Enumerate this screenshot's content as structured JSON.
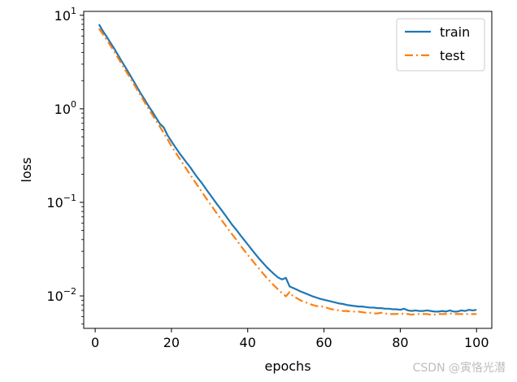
{
  "chart_data": {
    "type": "line",
    "xlabel": "epochs",
    "ylabel": "loss",
    "yscale": "log",
    "xlim": [
      -3,
      104
    ],
    "ylim": [
      0.0045,
      11
    ],
    "xticks": [
      0,
      20,
      40,
      60,
      80,
      100
    ],
    "yticks": [
      {
        "value": 0.01,
        "base": "10",
        "exp": "−2"
      },
      {
        "value": 0.1,
        "base": "10",
        "exp": "−1"
      },
      {
        "value": 1,
        "base": "10",
        "exp": "0"
      },
      {
        "value": 10,
        "base": "10",
        "exp": "1"
      }
    ],
    "legend_position": "top-right",
    "grid": false,
    "series": [
      {
        "name": "train",
        "color": "#1f77b4",
        "style": "solid",
        "x": [
          1,
          2,
          3,
          4,
          5,
          6,
          7,
          8,
          9,
          10,
          11,
          12,
          13,
          14,
          15,
          16,
          17,
          18,
          19,
          20,
          21,
          22,
          23,
          24,
          25,
          26,
          27,
          28,
          29,
          30,
          31,
          32,
          33,
          34,
          35,
          36,
          37,
          38,
          39,
          40,
          41,
          42,
          43,
          44,
          45,
          46,
          47,
          48,
          49,
          50,
          51,
          52,
          53,
          54,
          55,
          56,
          57,
          58,
          59,
          60,
          61,
          62,
          63,
          64,
          65,
          66,
          67,
          68,
          69,
          70,
          71,
          72,
          73,
          74,
          75,
          76,
          77,
          78,
          79,
          80,
          81,
          82,
          83,
          84,
          85,
          86,
          87,
          88,
          89,
          90,
          91,
          92,
          93,
          94,
          95,
          96,
          97,
          98,
          99,
          100
        ],
        "y": [
          8.0,
          6.8,
          5.9,
          5.1,
          4.4,
          3.75,
          3.2,
          2.75,
          2.35,
          2.0,
          1.7,
          1.45,
          1.25,
          1.07,
          0.93,
          0.8,
          0.69,
          0.63,
          0.52,
          0.45,
          0.39,
          0.34,
          0.3,
          0.265,
          0.235,
          0.205,
          0.18,
          0.16,
          0.14,
          0.123,
          0.108,
          0.095,
          0.084,
          0.074,
          0.065,
          0.057,
          0.051,
          0.045,
          0.04,
          0.0355,
          0.0315,
          0.028,
          0.025,
          0.0225,
          0.0203,
          0.0185,
          0.017,
          0.0157,
          0.015,
          0.0156,
          0.0126,
          0.0121,
          0.0116,
          0.0111,
          0.0107,
          0.0103,
          0.0099,
          0.0096,
          0.0093,
          0.0091,
          0.0089,
          0.0087,
          0.0085,
          0.0083,
          0.0082,
          0.008,
          0.0079,
          0.0078,
          0.0077,
          0.0077,
          0.0076,
          0.0075,
          0.0075,
          0.0074,
          0.0074,
          0.0073,
          0.0073,
          0.0072,
          0.0072,
          0.0071,
          0.0073,
          0.007,
          0.0069,
          0.007,
          0.0069,
          0.0069,
          0.007,
          0.0069,
          0.0068,
          0.0068,
          0.0069,
          0.0068,
          0.007,
          0.0068,
          0.0068,
          0.007,
          0.0069,
          0.0071,
          0.007,
          0.0071
        ]
      },
      {
        "name": "test",
        "color": "#ff7f0e",
        "style": "dashdot",
        "x": [
          1,
          2,
          3,
          4,
          5,
          6,
          7,
          8,
          9,
          10,
          11,
          12,
          13,
          14,
          15,
          16,
          17,
          18,
          19,
          20,
          21,
          22,
          23,
          24,
          25,
          26,
          27,
          28,
          29,
          30,
          31,
          32,
          33,
          34,
          35,
          36,
          37,
          38,
          39,
          40,
          41,
          42,
          43,
          44,
          45,
          46,
          47,
          48,
          49,
          50,
          51,
          52,
          53,
          54,
          55,
          56,
          57,
          58,
          59,
          60,
          61,
          62,
          63,
          64,
          65,
          66,
          67,
          68,
          69,
          70,
          71,
          72,
          73,
          74,
          75,
          76,
          77,
          78,
          79,
          80,
          81,
          82,
          83,
          84,
          85,
          86,
          87,
          88,
          89,
          90,
          91,
          92,
          93,
          94,
          95,
          96,
          97,
          98,
          99,
          100
        ],
        "y": [
          7.2,
          6.3,
          5.5,
          4.75,
          4.1,
          3.5,
          3.0,
          2.55,
          2.2,
          1.88,
          1.6,
          1.37,
          1.17,
          1.0,
          0.86,
          0.74,
          0.64,
          0.55,
          0.47,
          0.4,
          0.345,
          0.3,
          0.26,
          0.225,
          0.195,
          0.17,
          0.148,
          0.129,
          0.112,
          0.098,
          0.086,
          0.075,
          0.066,
          0.058,
          0.051,
          0.045,
          0.04,
          0.035,
          0.031,
          0.0275,
          0.0245,
          0.0218,
          0.0195,
          0.0174,
          0.0156,
          0.0141,
          0.0128,
          0.0117,
          0.0107,
          0.0099,
          0.011,
          0.0098,
          0.0094,
          0.0089,
          0.0086,
          0.0083,
          0.008,
          0.0078,
          0.0077,
          0.0077,
          0.0074,
          0.0072,
          0.0071,
          0.007,
          0.0069,
          0.0069,
          0.0068,
          0.0068,
          0.0068,
          0.0067,
          0.0066,
          0.0066,
          0.0065,
          0.0065,
          0.0066,
          0.0065,
          0.0064,
          0.0064,
          0.0064,
          0.0065,
          0.0064,
          0.0064,
          0.0063,
          0.0064,
          0.0064,
          0.0064,
          0.0064,
          0.0063,
          0.0063,
          0.0064,
          0.0064,
          0.0064,
          0.0065,
          0.0064,
          0.0064,
          0.0064,
          0.0064,
          0.0064,
          0.0064,
          0.0064
        ]
      }
    ]
  },
  "watermark": "CSDN @寅恪光潜"
}
